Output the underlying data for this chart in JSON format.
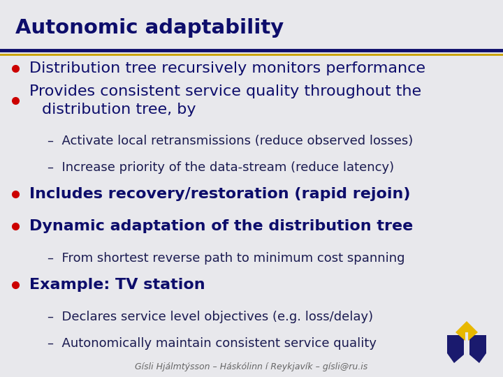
{
  "title": "Autonomic adaptability",
  "background_color": "#e8e8ec",
  "title_color": "#0d0d6b",
  "separator_colors": [
    "#0d0d6b",
    "#c8a000"
  ],
  "bullet_color": "#cc0000",
  "main_text_color": "#0d0d6b",
  "sub_text_color": "#1a1a50",
  "colored_text_color": "#0d0d6b",
  "footer_color": "#666666",
  "footer_text": "Gísli Hjálmtýsson – Háskólinn í Reykjavík – gísli@ru.is",
  "logo_primary": "#1a1a6e",
  "logo_accent": "#e8b800",
  "content": [
    {
      "type": "bullet",
      "text": "Distribution tree recursively monitors performance",
      "colored": false,
      "bold": false
    },
    {
      "type": "bullet",
      "text": "Provides consistent service quality throughout the\ndistribution tree, by",
      "colored": false,
      "bold": false
    },
    {
      "type": "sub",
      "text": "–  Activate local retransmissions (reduce observed losses)"
    },
    {
      "type": "sub",
      "text": "–  Increase priority of the data-stream (reduce latency)"
    },
    {
      "type": "bullet",
      "text": "Includes recovery/restoration (rapid rejoin)",
      "colored": true,
      "bold": true
    },
    {
      "type": "bullet",
      "text": "Dynamic adaptation of the distribution tree",
      "colored": true,
      "bold": true
    },
    {
      "type": "sub",
      "text": "–  From shortest reverse path to minimum cost spanning"
    },
    {
      "type": "bullet",
      "text": "Example: TV station",
      "colored": true,
      "bold": true
    },
    {
      "type": "sub",
      "text": "–  Declares service level objectives (e.g. loss/delay)"
    },
    {
      "type": "sub",
      "text": "–  Autonomically maintain consistent service quality"
    }
  ]
}
